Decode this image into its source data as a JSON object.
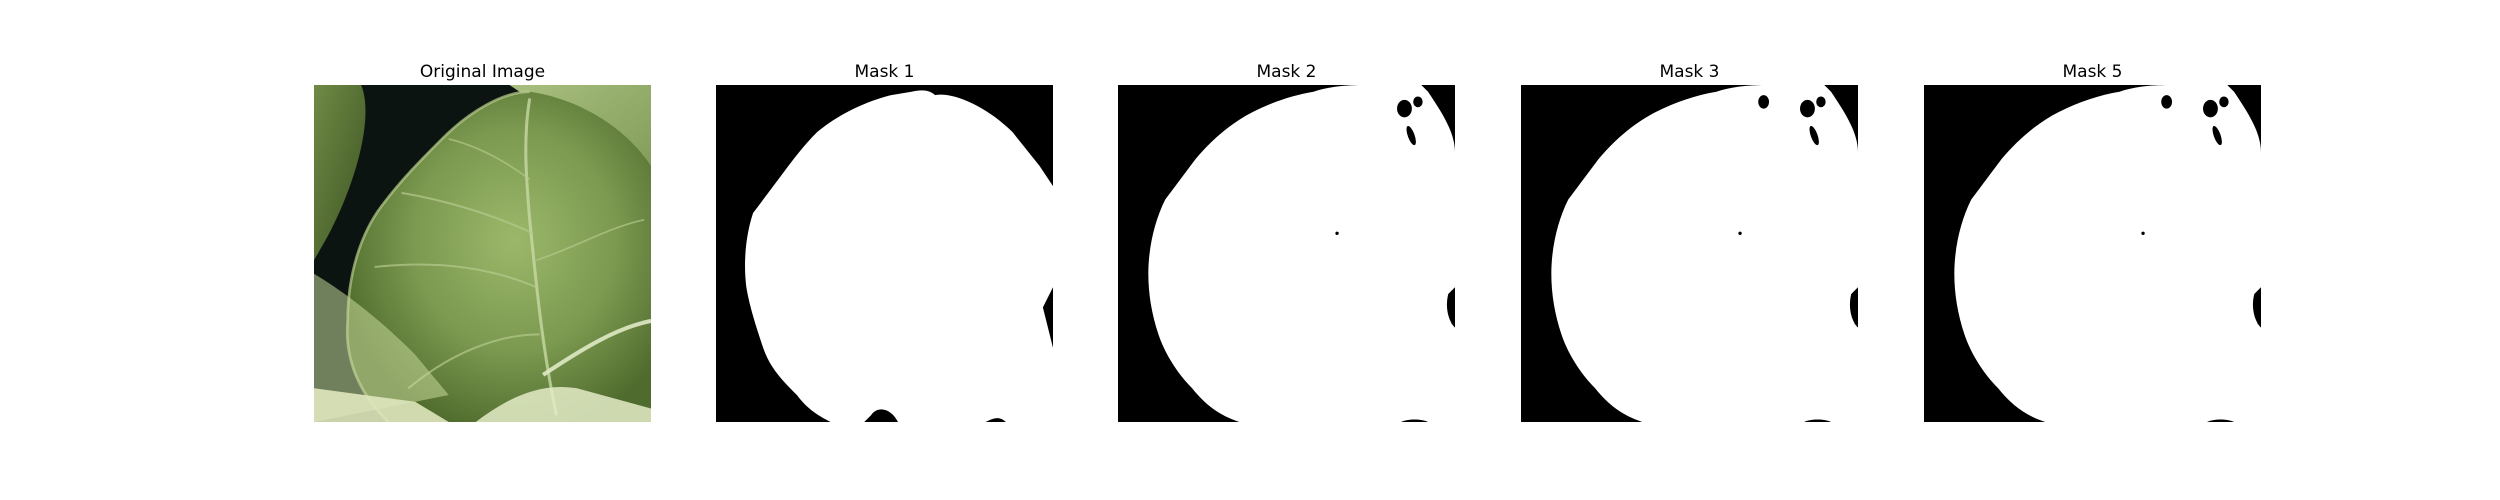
{
  "figure": {
    "panels": [
      {
        "title": "Original Image",
        "kind": "photo"
      },
      {
        "title": "Mask 1",
        "kind": "mask"
      },
      {
        "title": "Mask 2",
        "kind": "mask"
      },
      {
        "title": "Mask 3",
        "kind": "mask"
      },
      {
        "title": "Mask 5",
        "kind": "mask"
      }
    ]
  },
  "colors": {
    "background": "#ffffff",
    "mask_foreground": "#ffffff",
    "mask_background": "#000000",
    "leaf_green": "#7c9a50",
    "leaf_dark": "#4f6b2d",
    "backdrop": "#0b1410",
    "stem_light": "#d9e6b8"
  }
}
